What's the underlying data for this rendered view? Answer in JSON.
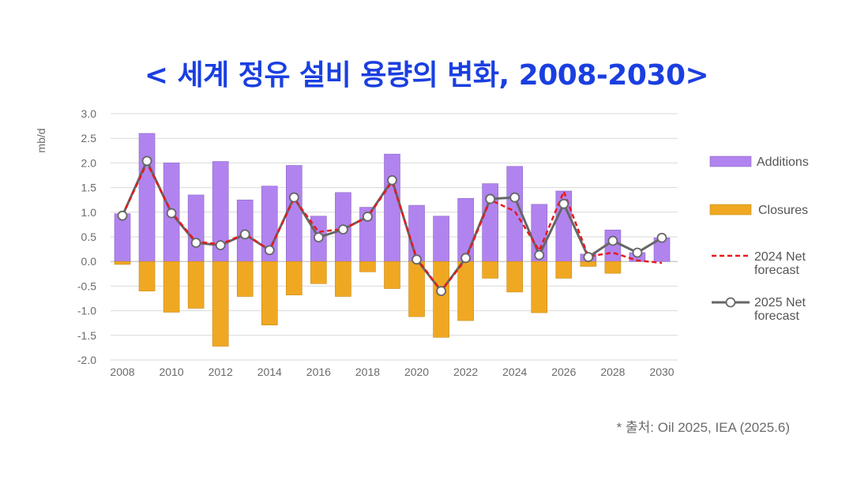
{
  "page": {
    "title": "< 세계 정유 설비 용량의 변화, 2008-2030>",
    "source": "* 출처: Oil 2025, IEA (2025.6)"
  },
  "chart_data": {
    "type": "bar",
    "ylabel": "mb/d",
    "ylim": [
      -2.0,
      3.0
    ],
    "yticks": [
      "3.0",
      "2.5",
      "2.0",
      "1.5",
      "1.0",
      "0.5",
      "0.0",
      "-0.5",
      "-1.0",
      "-1.5",
      "-2.0"
    ],
    "ytick_values": [
      3.0,
      2.5,
      2.0,
      1.5,
      1.0,
      0.5,
      0.0,
      -0.5,
      -1.0,
      -1.5,
      -2.0
    ],
    "xticks": [
      "2008",
      "2010",
      "2012",
      "2014",
      "2016",
      "2018",
      "2020",
      "2022",
      "2024",
      "2026",
      "2028",
      "2030"
    ],
    "x": [
      2008,
      2009,
      2010,
      2011,
      2012,
      2013,
      2014,
      2015,
      2016,
      2017,
      2018,
      2019,
      2020,
      2021,
      2022,
      2023,
      2024,
      2025,
      2026,
      2027,
      2028,
      2029,
      2030
    ],
    "grid": true,
    "legend_position": "right",
    "series": [
      {
        "name": "Additions",
        "kind": "bar",
        "color": "#b183ef",
        "values": [
          0.97,
          2.6,
          2.0,
          1.35,
          2.03,
          1.25,
          1.53,
          1.95,
          0.92,
          1.4,
          1.1,
          2.18,
          1.14,
          0.92,
          1.28,
          1.58,
          1.93,
          1.16,
          1.43,
          0.15,
          0.64,
          0.18,
          0.48
        ]
      },
      {
        "name": "Closures",
        "kind": "bar",
        "color": "#f0a823",
        "values": [
          -0.06,
          -0.6,
          -1.03,
          -0.95,
          -1.72,
          -0.71,
          -1.29,
          -0.68,
          -0.45,
          -0.71,
          -0.21,
          -0.55,
          -1.12,
          -1.54,
          -1.2,
          -0.34,
          -0.62,
          -1.04,
          -0.34,
          -0.1,
          -0.24,
          0.0,
          0.0
        ]
      },
      {
        "name": "2024 Net forecast",
        "kind": "dashed-line",
        "color": "#e8191c",
        "values": [
          0.93,
          2.0,
          1.0,
          0.4,
          0.35,
          0.56,
          0.23,
          1.28,
          0.6,
          0.66,
          0.9,
          1.62,
          0.07,
          -0.6,
          0.04,
          1.25,
          1.02,
          0.22,
          1.42,
          0.1,
          0.18,
          0.02,
          -0.03
        ]
      },
      {
        "name": "2025 Net forecast",
        "kind": "marker-line",
        "color": "#666666",
        "values": [
          0.93,
          2.04,
          0.98,
          0.38,
          0.33,
          0.55,
          0.23,
          1.3,
          0.49,
          0.65,
          0.91,
          1.65,
          0.04,
          -0.6,
          0.07,
          1.27,
          1.3,
          0.13,
          1.17,
          0.09,
          0.42,
          0.18,
          0.48
        ]
      }
    ]
  }
}
